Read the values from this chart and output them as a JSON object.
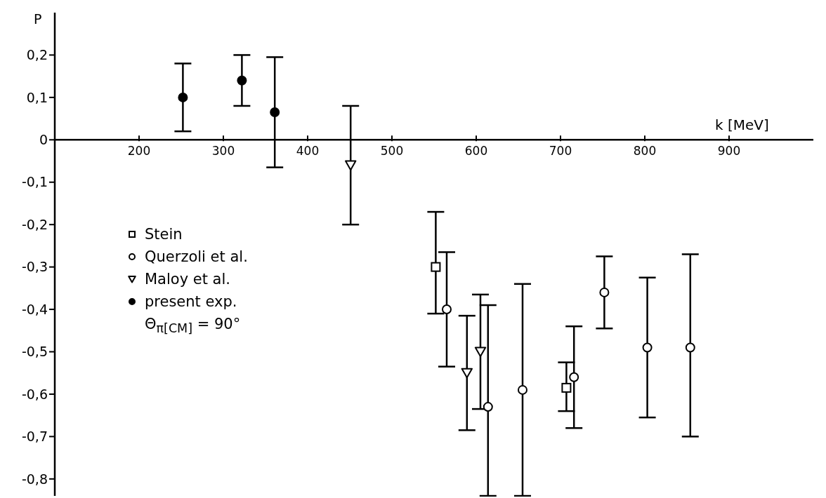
{
  "chart_data": {
    "type": "scatter",
    "xlabel": "k [MeV]",
    "ylabel": "P",
    "xlim": [
      100,
      1000
    ],
    "xticks": [
      200,
      300,
      400,
      500,
      600,
      700,
      800,
      900
    ],
    "ylim": [
      -0.84,
      0.3
    ],
    "yticks": [
      {
        "value": 0.2,
        "label": "0,2"
      },
      {
        "value": 0.1,
        "label": "0,1"
      },
      0,
      {
        "value": -0.1,
        "label": "-0,1"
      },
      {
        "value": -0.2,
        "label": "-0,2"
      },
      {
        "value": -0.3,
        "label": "-0,3"
      },
      {
        "value": -0.4,
        "label": "-0,4"
      },
      {
        "value": -0.5,
        "label": "-0,5"
      },
      {
        "value": -0.6,
        "label": "-0,6"
      },
      {
        "value": -0.7,
        "label": "-0,7"
      },
      {
        "value": -0.8,
        "label": "-0,8"
      }
    ],
    "legend": "left",
    "annotations": [
      "Θ$_{π[CM]}$ = 90°"
    ],
    "series": [
      {
        "name": "Stein",
        "type": "scatter",
        "marker": "square",
        "color": "#000000",
        "x": [
          552,
          707
        ],
        "values": [
          -0.3,
          -0.585
        ],
        "errors": [
          [
            -0.41,
            -0.17
          ],
          [
            -0.64,
            -0.525
          ]
        ]
      },
      {
        "name": "Querzoli et al.",
        "type": "scatter",
        "marker": "circle",
        "color": "#000000",
        "x": [
          565,
          614,
          655,
          716,
          752,
          803,
          854
        ],
        "values": [
          -0.4,
          -0.63,
          -0.59,
          -0.56,
          -0.36,
          -0.49,
          -0.49
        ],
        "errors": [
          0.135,
          [
            -0.84,
            -0.39
          ],
          [
            -0.84,
            -0.34
          ],
          0.12,
          0.085,
          0.165,
          [
            -0.7,
            -0.27
          ]
        ]
      },
      {
        "name": "Maloy et al.",
        "type": "scatter",
        "marker": "triangle",
        "color": "#000000",
        "x": [
          451,
          589,
          605
        ],
        "values": [
          -0.06,
          -0.55,
          -0.5
        ],
        "errors": [
          0.14,
          0.135,
          0.135
        ]
      },
      {
        "name": "present exp.",
        "type": "scatter",
        "marker": "circle",
        "color": "#000000",
        "x": [
          252,
          322,
          361
        ],
        "values": [
          0.1,
          0.14,
          0.065
        ],
        "errors": [
          0.08,
          0.06,
          0.13
        ]
      }
    ]
  }
}
